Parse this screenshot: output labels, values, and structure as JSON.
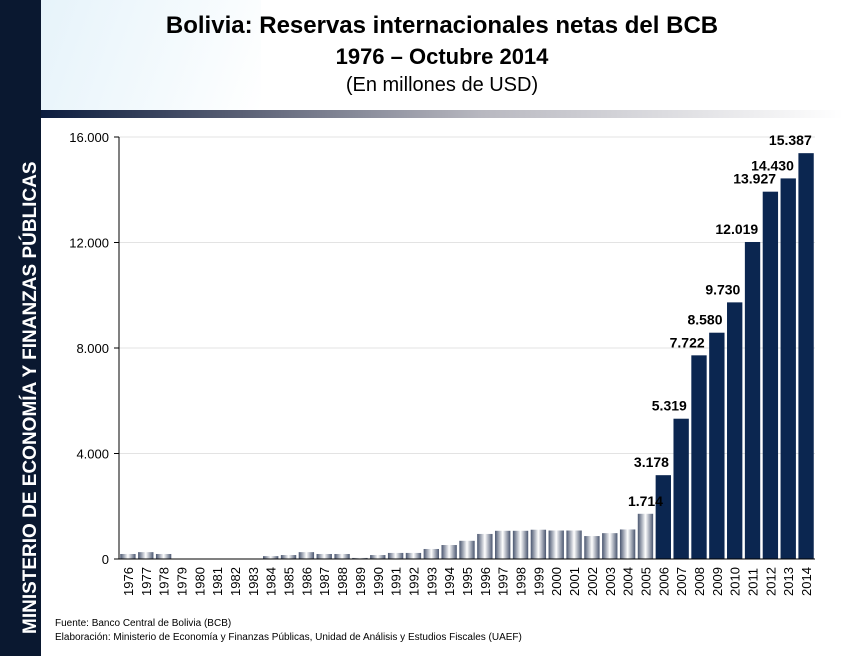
{
  "sidebar": {
    "text": "MINISTERIO DE ECONOMÍA Y FINANZAS PÚBLICAS"
  },
  "header": {
    "title": "Bolivia: Reservas internacionales netas del BCB",
    "subtitle": "1976 – Octubre 2014",
    "units": "(En millones de USD)"
  },
  "footer": {
    "source": "Fuente: Banco Central de Bolivia (BCB)",
    "credit": "Elaboración: Ministerio de Economía y Finanzas Públicas, Unidad de Análisis y Estudios Fiscales (UAEF)"
  },
  "chart_data": {
    "type": "bar",
    "title": "Bolivia: Reservas internacionales netas del BCB",
    "xlabel": "",
    "ylabel": "En millones de USD",
    "ylim": [
      0,
      16000
    ],
    "yticks": [
      0,
      4000,
      8000,
      12000,
      16000
    ],
    "ytick_labels": [
      "0",
      "4.000",
      "8.000",
      "12.000",
      "16.000"
    ],
    "categories": [
      "1976",
      "1977",
      "1978",
      "1979",
      "1980",
      "1981",
      "1982",
      "1983",
      "1984",
      "1985",
      "1986",
      "1987",
      "1988",
      "1989",
      "1990",
      "1991",
      "1992",
      "1993",
      "1994",
      "1995",
      "1996",
      "1997",
      "1998",
      "1999",
      "2000",
      "2001",
      "2002",
      "2003",
      "2004",
      "2005",
      "2006",
      "2007",
      "2008",
      "2009",
      "2010",
      "2011",
      "2012",
      "2013",
      "2014"
    ],
    "values": [
      190,
      260,
      190,
      0,
      0,
      0,
      0,
      0,
      110,
      150,
      260,
      190,
      190,
      40,
      150,
      230,
      230,
      380,
      530,
      690,
      950,
      1070,
      1070,
      1110,
      1080,
      1080,
      870,
      980,
      1120,
      1714,
      3178,
      5319,
      7722,
      8580,
      9730,
      12019,
      13927,
      14430,
      15387
    ],
    "data_labels": {
      "2005": "1.714",
      "2006": "3.178",
      "2007": "5.319",
      "2008": "7.722",
      "2009": "8.580",
      "2010": "9.730",
      "2011": "12.019",
      "2012": "13.927",
      "2013": "14.430",
      "2014": "15.387"
    },
    "colors": {
      "dark": "#0b2650",
      "light_edge": "#4a5670",
      "light_center": "#ffffff"
    },
    "grid": true
  }
}
